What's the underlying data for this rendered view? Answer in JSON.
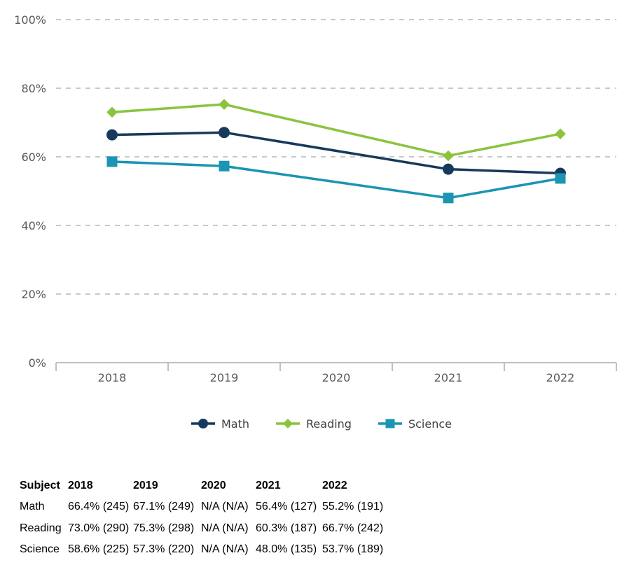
{
  "chart_data": {
    "type": "line",
    "title": "",
    "xlabel": "",
    "ylabel": "",
    "x": [
      "2018",
      "2019",
      "2020",
      "2021",
      "2022"
    ],
    "series": [
      {
        "name": "Math",
        "marker": "circle",
        "color": "#17395C",
        "values": [
          66.4,
          67.1,
          null,
          56.4,
          55.2
        ]
      },
      {
        "name": "Reading",
        "marker": "diamond",
        "color": "#8AC43F",
        "values": [
          73.0,
          75.3,
          null,
          60.3,
          66.7
        ]
      },
      {
        "name": "Science",
        "marker": "square",
        "color": "#1C94B3",
        "values": [
          58.6,
          57.3,
          null,
          48.0,
          53.7
        ]
      }
    ],
    "ylim": [
      0,
      100
    ],
    "yticks": [
      0,
      20,
      40,
      60,
      80,
      100
    ],
    "ytick_suffix": "%",
    "grid": "horizontal-dashed",
    "legend_position": "bottom",
    "missing_policy": "connect-gaps"
  },
  "table": {
    "headers": [
      "Subject",
      "2018",
      "2019",
      "2020",
      "2021",
      "2022"
    ],
    "rows": [
      [
        "Math",
        "66.4% (245)",
        "67.1% (249)",
        "N/A (N/A)",
        "56.4% (127)",
        "55.2% (191)"
      ],
      [
        "Reading",
        "73.0% (290)",
        "75.3% (298)",
        "N/A (N/A)",
        "60.3% (187)",
        "66.7% (242)"
      ],
      [
        "Science",
        "58.6% (225)",
        "57.3% (220)",
        "N/A (N/A)",
        "48.0% (135)",
        "53.7% (189)"
      ]
    ]
  },
  "colors": {
    "grid": "#C9C9C9",
    "axis": "#ACACAC",
    "axis_label": "#595959",
    "legend_text": "#3F3F3F",
    "table_text": "#000000",
    "background": "#FFFFFF"
  }
}
